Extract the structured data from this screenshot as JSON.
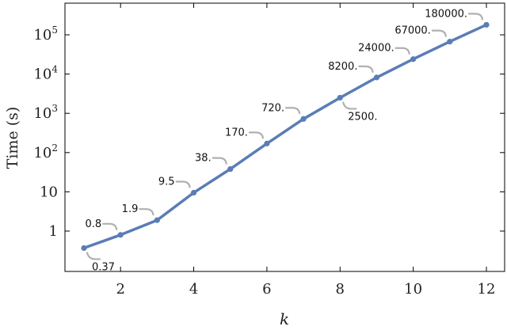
{
  "chart_data": {
    "type": "line",
    "title": "",
    "xlabel": "k",
    "ylabel": "Time (s)",
    "yscale": "log",
    "xlim": [
      0.5,
      12.5
    ],
    "ylim": [
      0.1,
      400000
    ],
    "grid": false,
    "x_ticks": [
      2,
      4,
      6,
      8,
      10,
      12
    ],
    "y_ticks": [
      {
        "value": 1,
        "label": "1"
      },
      {
        "value": 10,
        "label": "10"
      },
      {
        "value": 100,
        "base": "10",
        "exp": "2"
      },
      {
        "value": 1000,
        "base": "10",
        "exp": "3"
      },
      {
        "value": 10000,
        "base": "10",
        "exp": "4"
      },
      {
        "value": 100000,
        "base": "10",
        "exp": "5"
      }
    ],
    "series": [
      {
        "color": "#5a7db5",
        "points": [
          {
            "x": 1,
            "y": 0.37,
            "label": "0.37",
            "pos": "below"
          },
          {
            "x": 2,
            "y": 0.8,
            "label": "0.8",
            "pos": "above"
          },
          {
            "x": 3,
            "y": 1.9,
            "label": "1.9",
            "pos": "above"
          },
          {
            "x": 4,
            "y": 9.5,
            "label": "9.5",
            "pos": "above"
          },
          {
            "x": 5,
            "y": 38,
            "label": "38.",
            "pos": "above"
          },
          {
            "x": 6,
            "y": 170,
            "label": "170.",
            "pos": "above"
          },
          {
            "x": 7,
            "y": 720,
            "label": "720.",
            "pos": "above"
          },
          {
            "x": 8,
            "y": 2500,
            "label": "2500.",
            "pos": "below"
          },
          {
            "x": 9,
            "y": 8200,
            "label": "8200.",
            "pos": "above"
          },
          {
            "x": 10,
            "y": 24000,
            "label": "24000.",
            "pos": "above"
          },
          {
            "x": 11,
            "y": 67000,
            "label": "67000.",
            "pos": "above"
          },
          {
            "x": 12,
            "y": 180000,
            "label": "180000.",
            "pos": "above"
          }
        ]
      }
    ]
  }
}
